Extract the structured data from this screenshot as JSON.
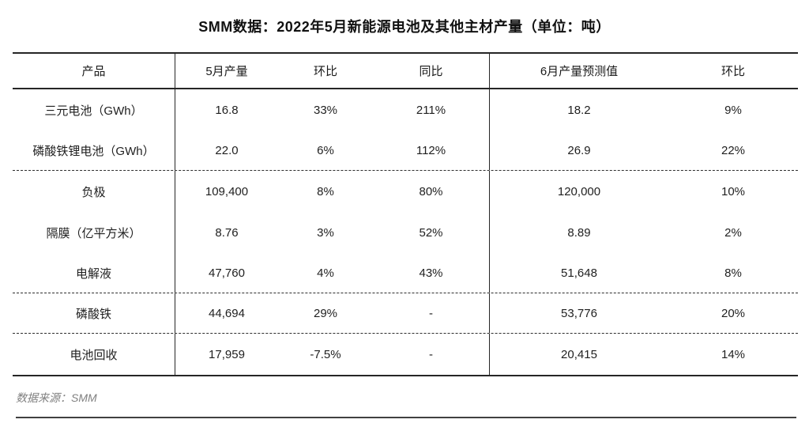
{
  "title": "SMM数据：2022年5月新能源电池及其他主材产量（单位：吨）",
  "table": {
    "headers": [
      "产品",
      "5月产量",
      "环比",
      "同比",
      "6月产量预测值",
      "环比"
    ],
    "rows": [
      [
        "三元电池（GWh）",
        "16.8",
        "33%",
        "211%",
        "18.2",
        "9%"
      ],
      [
        "磷酸铁锂电池（GWh）",
        "22.0",
        "6%",
        "112%",
        "26.9",
        "22%"
      ],
      [
        "负极",
        "109,400",
        "8%",
        "80%",
        "120,000",
        "10%"
      ],
      [
        "隔膜（亿平方米）",
        "8.76",
        "3%",
        "52%",
        "8.89",
        "2%"
      ],
      [
        "电解液",
        "47,760",
        "4%",
        "43%",
        "51,648",
        "8%"
      ],
      [
        "磷酸铁",
        "44,694",
        "29%",
        "-",
        "53,776",
        "20%"
      ],
      [
        "电池回收",
        "17,959",
        "-7.5%",
        "-",
        "20,415",
        "14%"
      ]
    ]
  },
  "footer": {
    "source": "数据来源：SMM"
  }
}
